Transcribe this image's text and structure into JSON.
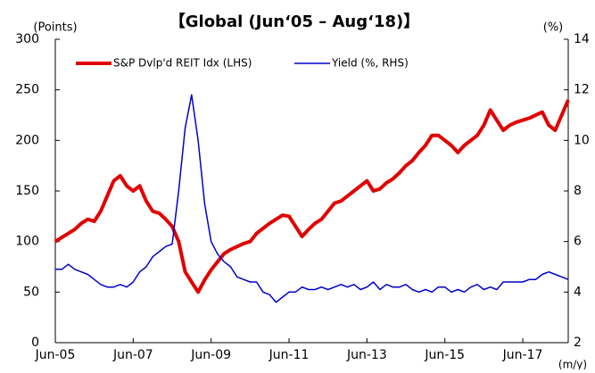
{
  "chart_data": {
    "type": "line",
    "title": "【Global (Jun‘05 – Aug‘18)】",
    "y_label": "(Points)",
    "y2_label": "(%)",
    "x_label": "(m/y)",
    "categories": [
      "Jun-05",
      null,
      null,
      null,
      null,
      null,
      null,
      null,
      null,
      null,
      null,
      null,
      "Jun-07",
      null,
      null,
      null,
      null,
      null,
      null,
      null,
      null,
      null,
      null,
      null,
      "Jun-09",
      null,
      null,
      null,
      null,
      null,
      null,
      null,
      null,
      null,
      null,
      null,
      "Jun-11",
      null,
      null,
      null,
      null,
      null,
      null,
      null,
      null,
      null,
      null,
      null,
      "Jun-13",
      null,
      null,
      null,
      null,
      null,
      null,
      null,
      null,
      null,
      null,
      null,
      "Jun-15",
      null,
      null,
      null,
      null,
      null,
      null,
      null,
      null,
      null,
      null,
      null,
      "Jun-17",
      null,
      null,
      null,
      null,
      null,
      null,
      null
    ],
    "series": [
      {
        "name": "S&P Dvlp'd REIT Idx (LHS)",
        "color": "#e00000",
        "values": [
          100,
          104,
          108,
          112,
          118,
          122,
          120,
          130,
          145,
          160,
          165,
          155,
          150,
          155,
          140,
          130,
          128,
          122,
          115,
          100,
          70,
          60,
          50,
          62,
          72,
          80,
          88,
          92,
          95,
          98,
          100,
          108,
          113,
          118,
          122,
          126,
          125,
          115,
          105,
          112,
          118,
          122,
          130,
          138,
          140,
          145,
          150,
          155,
          160,
          150,
          152,
          158,
          162,
          168,
          175,
          180,
          188,
          195,
          205,
          205,
          200,
          195,
          188,
          195,
          200,
          205,
          215,
          230,
          220,
          210,
          215,
          218,
          220,
          222,
          225,
          228,
          215,
          210,
          225,
          240
        ]
      },
      {
        "name": "Yield (%, RHS)",
        "color": "#0000cc",
        "axis": "y2",
        "values": [
          4.9,
          4.9,
          5.1,
          4.9,
          4.8,
          4.7,
          4.5,
          4.3,
          4.2,
          4.2,
          4.3,
          4.2,
          4.4,
          4.8,
          5.0,
          5.4,
          5.6,
          5.8,
          5.9,
          8.0,
          10.5,
          11.8,
          10.0,
          7.5,
          6.0,
          5.5,
          5.2,
          5.0,
          4.6,
          4.5,
          4.4,
          4.4,
          4.0,
          3.9,
          3.6,
          3.8,
          4.0,
          4.0,
          4.2,
          4.1,
          4.1,
          4.2,
          4.1,
          4.2,
          4.3,
          4.2,
          4.3,
          4.1,
          4.2,
          4.4,
          4.1,
          4.3,
          4.2,
          4.2,
          4.3,
          4.1,
          4.0,
          4.1,
          4.0,
          4.2,
          4.2,
          4.0,
          4.1,
          4.0,
          4.2,
          4.3,
          4.1,
          4.2,
          4.1,
          4.4,
          4.4,
          4.4,
          4.4,
          4.5,
          4.5,
          4.7,
          4.8,
          4.7,
          4.6,
          4.5
        ]
      }
    ],
    "ylim": [
      0,
      300
    ],
    "yticks": [
      0,
      50,
      100,
      150,
      200,
      250,
      300
    ],
    "y2lim": [
      2,
      14
    ],
    "y2ticks": [
      2,
      4,
      6,
      8,
      10,
      12,
      14
    ],
    "grid": false,
    "legend": "upper left"
  }
}
